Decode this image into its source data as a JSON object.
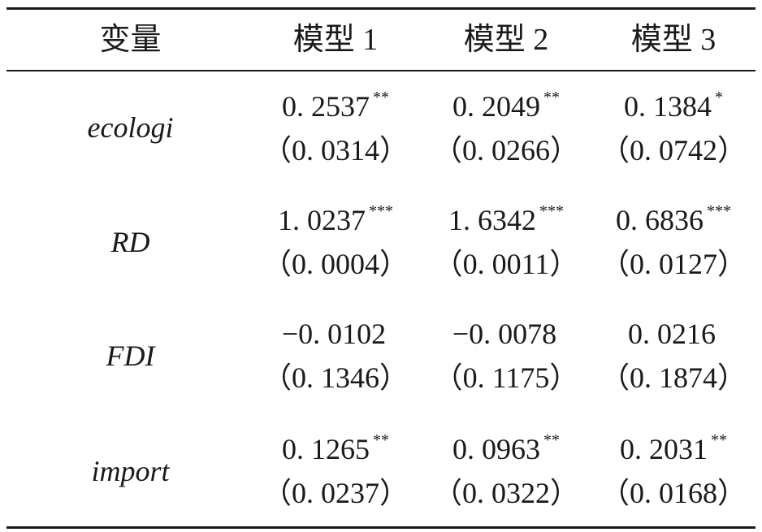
{
  "table": {
    "headers": [
      "变量",
      "模型 1",
      "模型 2",
      "模型 3"
    ],
    "rows": [
      {
        "variable": "ecologi",
        "coef": [
          "0. 2537",
          "0. 2049",
          "0. 1384"
        ],
        "stars": [
          "**",
          "**",
          "*"
        ],
        "se": [
          "（0. 0314）",
          "（0. 0266）",
          "（0. 0742）"
        ]
      },
      {
        "variable": "RD",
        "coef": [
          "1. 0237",
          "1. 6342",
          "0. 6836"
        ],
        "stars": [
          "***",
          "***",
          "***"
        ],
        "se": [
          "（0. 0004）",
          "（0. 0011）",
          "（0. 0127）"
        ]
      },
      {
        "variable": "FDI",
        "coef": [
          "−0. 0102",
          "−0. 0078",
          "0. 0216"
        ],
        "stars": [
          "",
          "",
          ""
        ],
        "se": [
          "（0. 1346）",
          "（0. 1175）",
          "（0. 1874）"
        ]
      },
      {
        "variable": "import",
        "coef": [
          "0. 1265",
          "0. 0963",
          "0. 2031"
        ],
        "stars": [
          "**",
          "**",
          "**"
        ],
        "se": [
          "（0. 0237）",
          "（0. 0322）",
          "（0. 0168）"
        ]
      }
    ]
  }
}
